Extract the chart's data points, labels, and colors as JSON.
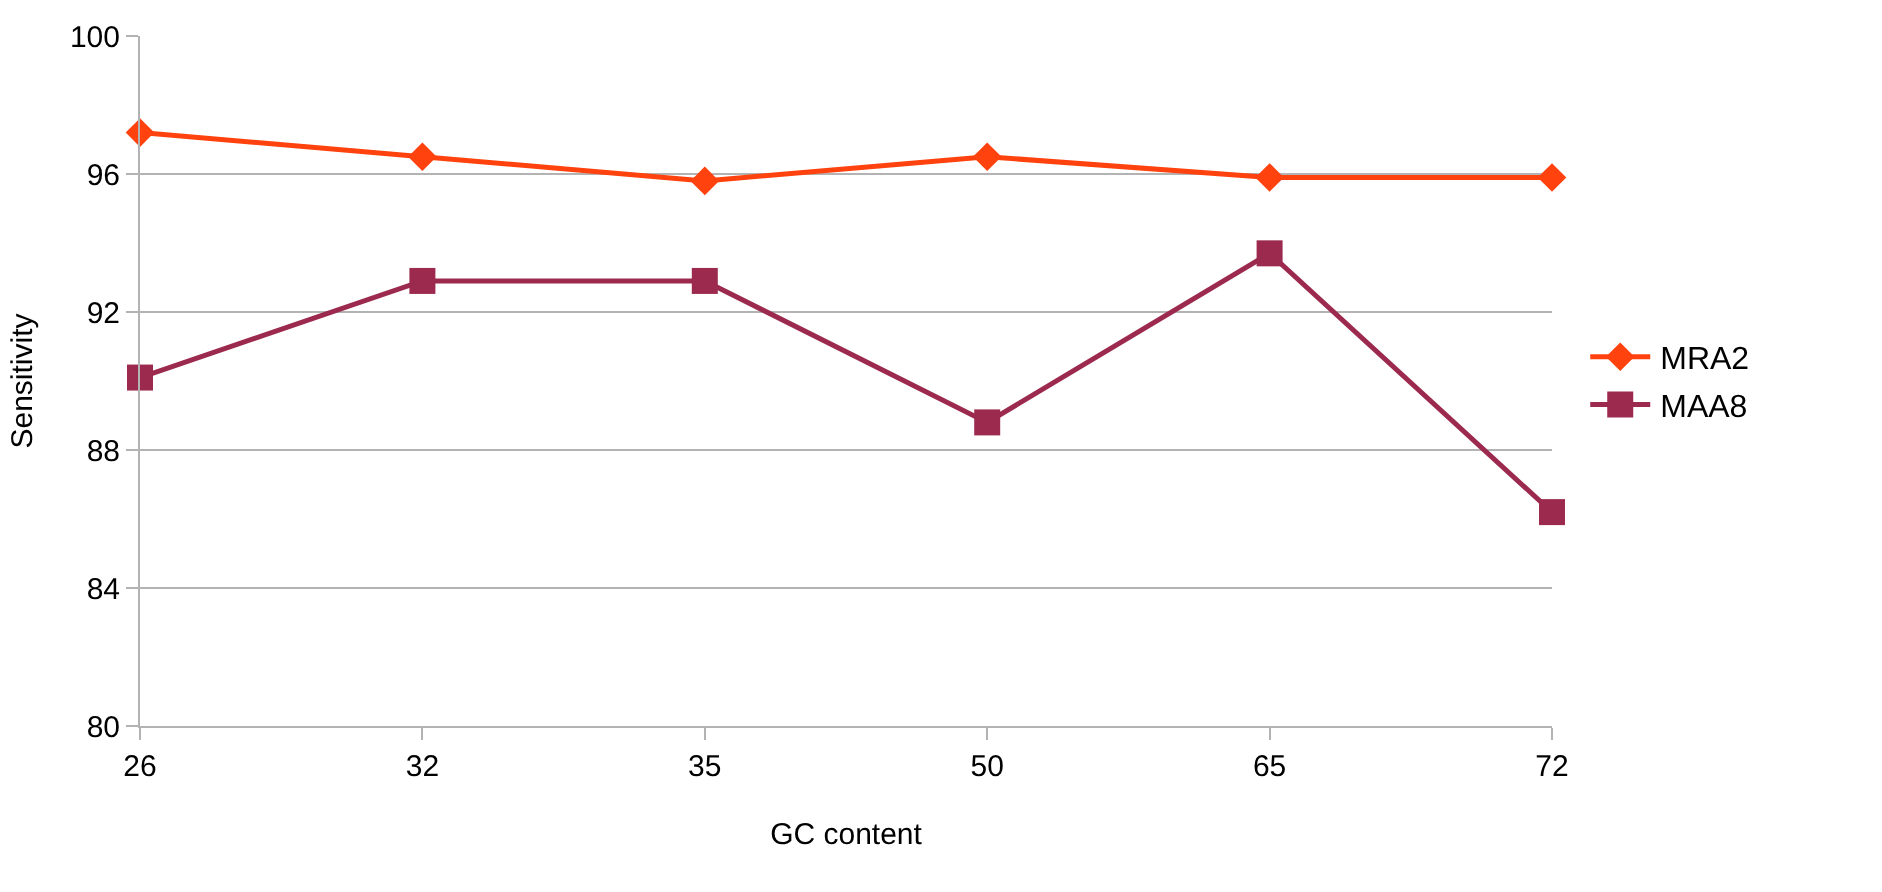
{
  "chart_data": {
    "type": "line",
    "xlabel": "GC content",
    "ylabel": "Sensitivity",
    "categories": [
      "26",
      "32",
      "35",
      "50",
      "65",
      "72"
    ],
    "series": [
      {
        "name": "MRA2",
        "color": "#ff420e",
        "marker": "diamond",
        "values": [
          97.2,
          96.5,
          95.8,
          96.5,
          95.9,
          95.9
        ]
      },
      {
        "name": "MAA8",
        "color": "#9c2a4f",
        "marker": "square",
        "values": [
          90.1,
          92.9,
          92.9,
          88.8,
          93.7,
          86.2
        ]
      }
    ],
    "ylim": [
      80,
      100
    ],
    "yticks": [
      80,
      84,
      88,
      92,
      96,
      100
    ],
    "grid": "y",
    "legend": "right",
    "line_style": "solid"
  }
}
